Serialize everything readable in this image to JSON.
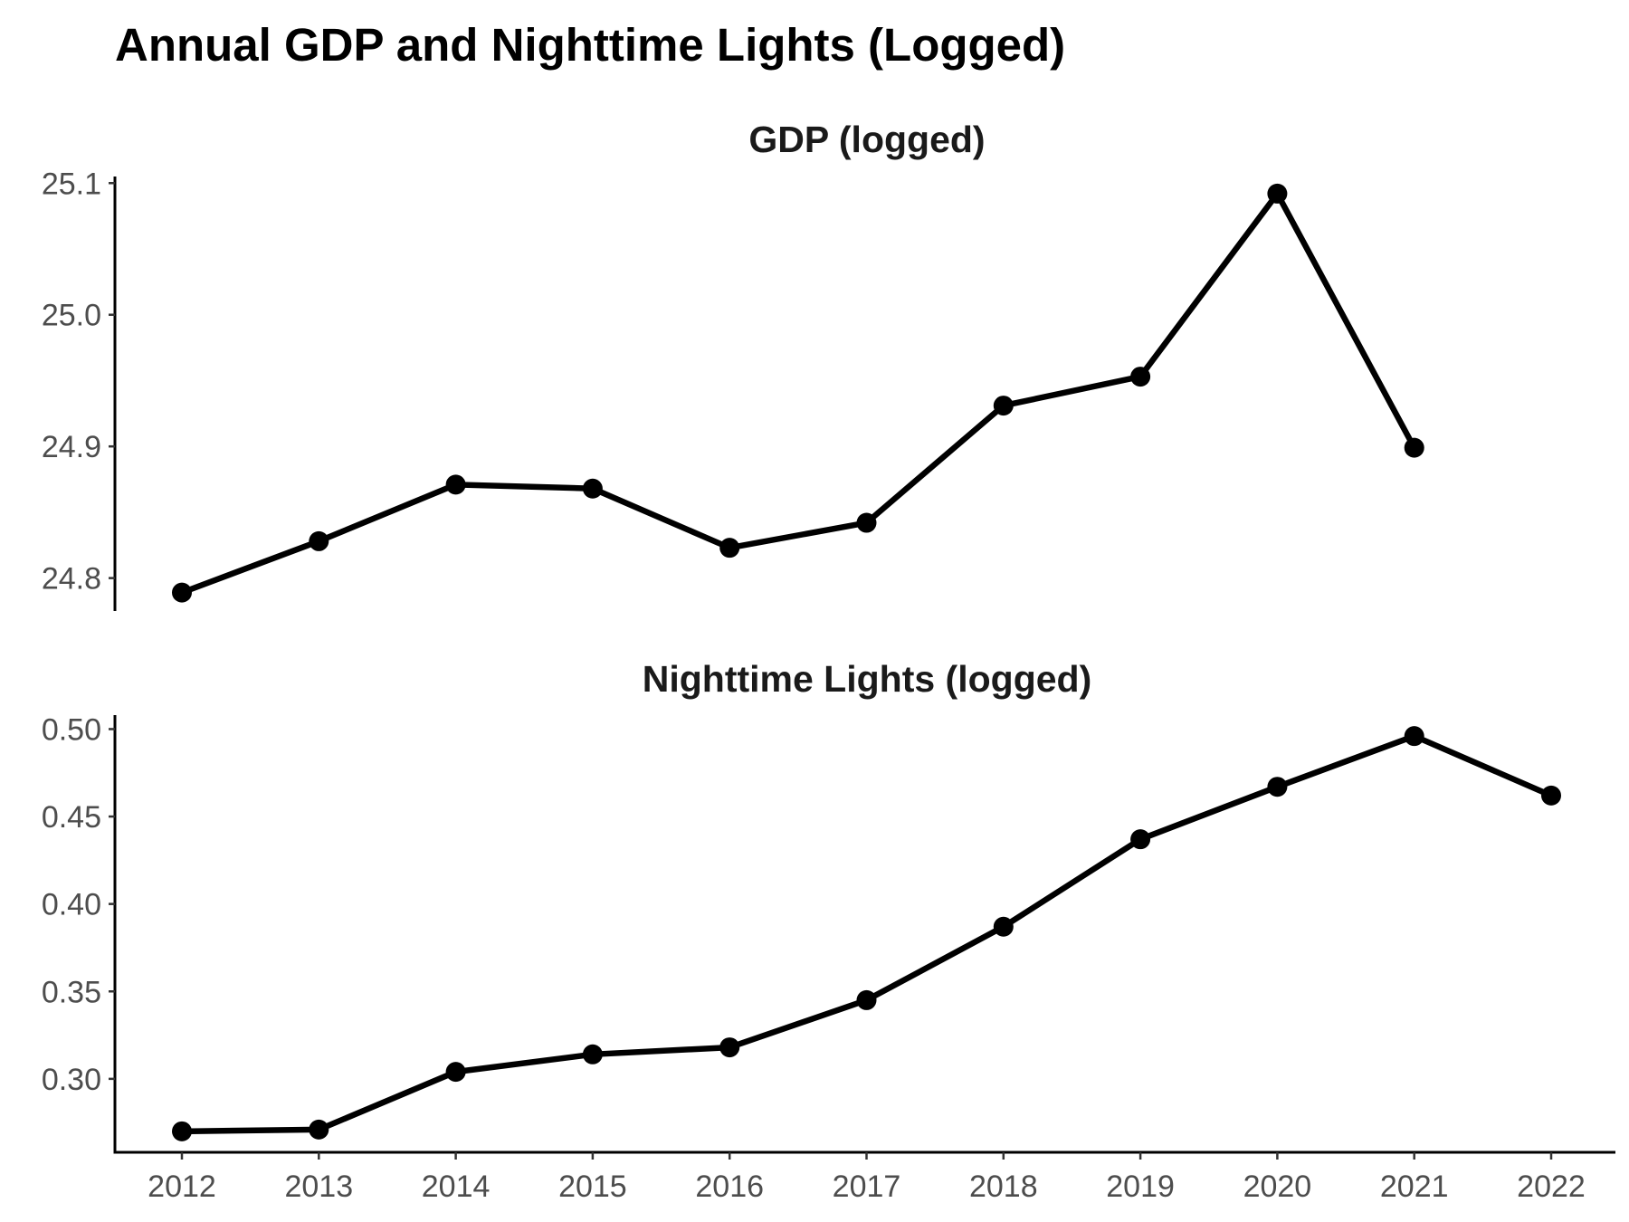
{
  "figure": {
    "title": "Annual GDP and Nighttime Lights (Logged)"
  },
  "chart_data": [
    {
      "type": "line",
      "title": "GDP (logged)",
      "x": [
        2012,
        2013,
        2014,
        2015,
        2016,
        2017,
        2018,
        2019,
        2020,
        2021
      ],
      "values": [
        24.789,
        24.828,
        24.871,
        24.868,
        24.823,
        24.842,
        24.931,
        24.953,
        25.092,
        24.899
      ],
      "ylim": [
        24.775,
        25.105
      ],
      "yticks": [
        24.8,
        24.9,
        25.0,
        25.1
      ],
      "ytick_labels": [
        "24.8",
        "24.9",
        "25.0",
        "25.1"
      ],
      "xlabel": "",
      "ylabel": "",
      "grid": false,
      "color": "#000000"
    },
    {
      "type": "line",
      "title": "Nighttime Lights (logged)",
      "x": [
        2012,
        2013,
        2014,
        2015,
        2016,
        2017,
        2018,
        2019,
        2020,
        2021,
        2022
      ],
      "values": [
        0.27,
        0.271,
        0.304,
        0.314,
        0.318,
        0.345,
        0.387,
        0.437,
        0.467,
        0.496,
        0.462
      ],
      "ylim": [
        0.258,
        0.508
      ],
      "yticks": [
        0.3,
        0.35,
        0.4,
        0.45,
        0.5
      ],
      "ytick_labels": [
        "0.30",
        "0.35",
        "0.40",
        "0.45",
        "0.50"
      ],
      "xticks": [
        2012,
        2013,
        2014,
        2015,
        2016,
        2017,
        2018,
        2019,
        2020,
        2021,
        2022
      ],
      "xtick_labels": [
        "2012",
        "2013",
        "2014",
        "2015",
        "2016",
        "2017",
        "2018",
        "2019",
        "2020",
        "2021",
        "2022"
      ],
      "xlabel": "",
      "ylabel": "",
      "grid": false,
      "color": "#000000"
    }
  ]
}
